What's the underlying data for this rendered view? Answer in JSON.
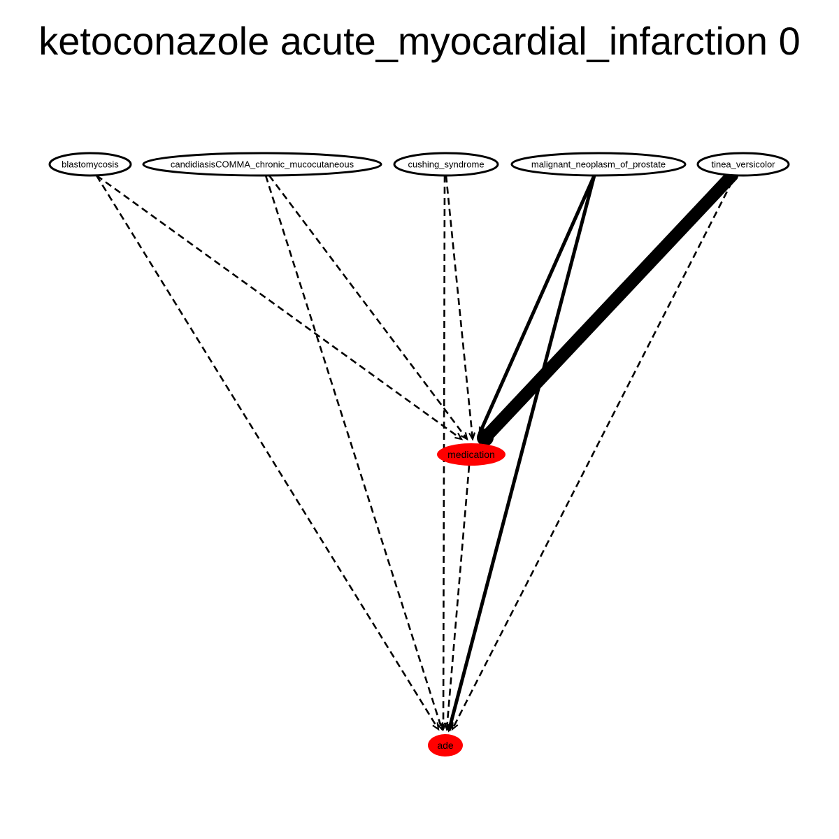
{
  "title": "ketoconazole acute_myocardial_infarction 0",
  "colors": {
    "highlight": "#ff0000",
    "stroke": "#000000",
    "background": "#ffffff"
  },
  "nodes": [
    {
      "id": "blastomycosis",
      "label": "blastomycosis",
      "fill": "#ffffff"
    },
    {
      "id": "candidiasis",
      "label": "candidiasisCOMMA_chronic_mucocutaneous",
      "fill": "#ffffff"
    },
    {
      "id": "cushing",
      "label": "cushing_syndrome",
      "fill": "#ffffff"
    },
    {
      "id": "prostate",
      "label": "malignant_neoplasm_of_prostate",
      "fill": "#ffffff"
    },
    {
      "id": "tinea",
      "label": "tinea_versicolor",
      "fill": "#ffffff"
    },
    {
      "id": "medication",
      "label": "medication",
      "fill": "#ff0000"
    },
    {
      "id": "ade",
      "label": "ade",
      "fill": "#ff0000"
    }
  ],
  "edges": [
    {
      "from": "blastomycosis",
      "to": "medication",
      "style": "dashed",
      "weight": 1
    },
    {
      "from": "blastomycosis",
      "to": "ade",
      "style": "dashed",
      "weight": 1
    },
    {
      "from": "candidiasis",
      "to": "medication",
      "style": "dashed",
      "weight": 1
    },
    {
      "from": "candidiasis",
      "to": "ade",
      "style": "dashed",
      "weight": 1
    },
    {
      "from": "cushing",
      "to": "medication",
      "style": "dashed",
      "weight": 1
    },
    {
      "from": "cushing",
      "to": "ade",
      "style": "dashed",
      "weight": 1
    },
    {
      "from": "prostate",
      "to": "medication",
      "style": "solid",
      "weight": 2
    },
    {
      "from": "prostate",
      "to": "ade",
      "style": "solid",
      "weight": 2
    },
    {
      "from": "tinea",
      "to": "medication",
      "style": "solid",
      "weight": 6
    },
    {
      "from": "tinea",
      "to": "ade",
      "style": "dashed",
      "weight": 1
    },
    {
      "from": "medication",
      "to": "ade",
      "style": "dashed",
      "weight": 1
    }
  ]
}
